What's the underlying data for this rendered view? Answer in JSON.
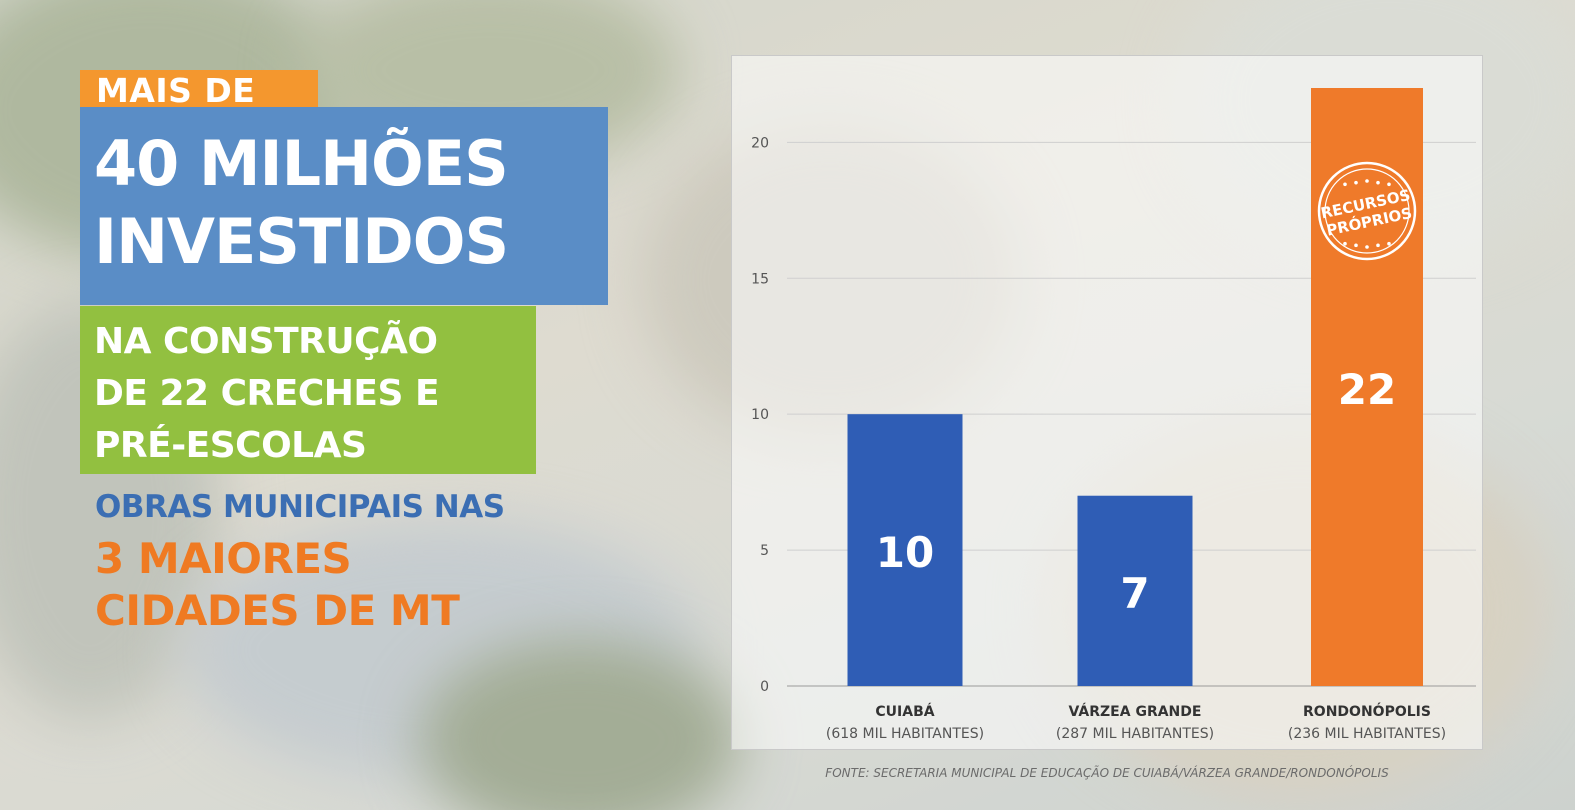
{
  "headline": {
    "tag1": "MAIS DE",
    "tag2_line1": "40 MILHÕES",
    "tag2_line2": "INVESTIDOS",
    "tag3_line1": "NA CONSTRUÇÃO",
    "tag3_line2": "DE 22 CRECHES E",
    "tag3_line3": "PRÉ-ESCOLAS",
    "sub1": "OBRAS MUNICIPAIS NAS",
    "sub2": "3 MAIORES",
    "sub3": "CIDADES DE MT"
  },
  "colors": {
    "orange_tag": "#f4972e",
    "blue_tag": "#5a8dc6",
    "green_tag": "#92c040",
    "blue_text": "#3b6eb3",
    "orange_text": "#ef7a22",
    "bar_blue": "#2f5db5",
    "bar_orange": "#ef7a2a"
  },
  "chart_data": {
    "type": "bar",
    "categories": [
      "CUIABÁ",
      "VÁRZEA GRANDE",
      "RONDONÓPOLIS"
    ],
    "category_sublabels": [
      "(618 MIL HABITANTES)",
      "(287 MIL HABITANTES)",
      "(236 MIL HABITANTES)"
    ],
    "values": [
      10,
      7,
      22
    ],
    "data_labels": [
      "10",
      "7",
      "22"
    ],
    "bar_colors": [
      "#2f5db5",
      "#2f5db5",
      "#ef7a2a"
    ],
    "ylim": [
      0,
      22
    ],
    "yticks": [
      0,
      5,
      10,
      15,
      20
    ],
    "grid": true,
    "stamp": {
      "line1": "RECURSOS",
      "line2": "PRÓPRIOS"
    }
  },
  "source": "FONTE: SECRETARIA MUNICIPAL DE EDUCAÇÃO DE CUIABÁ/VÁRZEA GRANDE/RONDONÓPOLIS"
}
